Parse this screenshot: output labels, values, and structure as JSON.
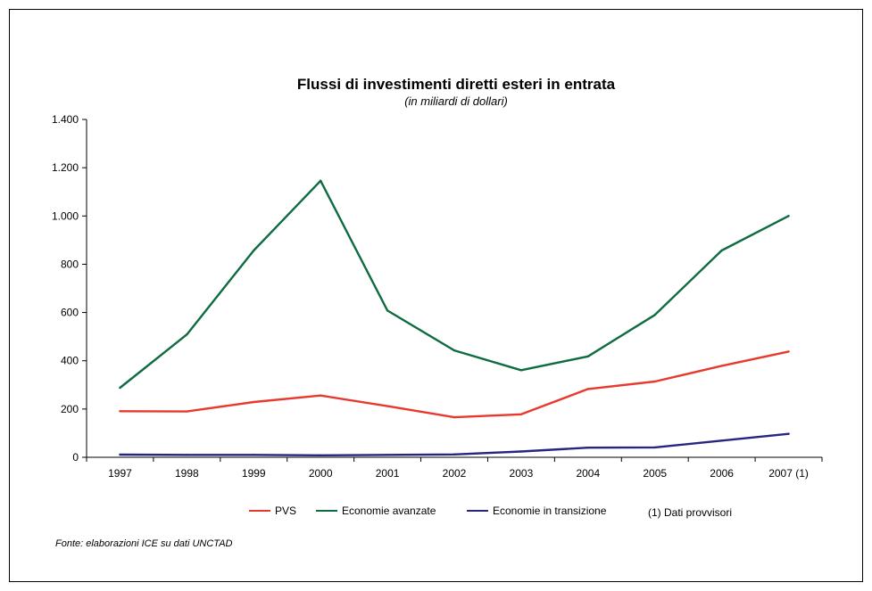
{
  "chart_data": {
    "type": "line",
    "title": "Flussi di investimenti diretti esteri in entrata",
    "subtitle": "(in miliardi di dollari)",
    "categories": [
      "1997",
      "1998",
      "1999",
      "2000",
      "2001",
      "2002",
      "2003",
      "2004",
      "2005",
      "2006",
      "2007 (1)"
    ],
    "ylim": [
      0,
      1400
    ],
    "yticks": [
      0,
      200,
      400,
      600,
      800,
      1000,
      1200,
      1400
    ],
    "ytick_labels": [
      "0",
      "200",
      "400",
      "600",
      "800",
      "1.000",
      "1.200",
      "1.400"
    ],
    "grid": false,
    "legend_position": "bottom",
    "series": [
      {
        "name": "PVS",
        "color": "#e8392f",
        "values": [
          191,
          190,
          229,
          256,
          212,
          166,
          178,
          283,
          314,
          379,
          438
        ]
      },
      {
        "name": "Economie avanzate",
        "color": "#0f6b40",
        "values": [
          288,
          509,
          857,
          1146,
          608,
          443,
          361,
          418,
          590,
          857,
          1000
        ]
      },
      {
        "name": "Economie in transizione",
        "color": "#262680",
        "values": [
          11,
          10,
          10,
          8,
          10,
          12,
          24,
          40,
          41,
          69,
          97
        ]
      }
    ],
    "note": "(1) Dati provvisori",
    "source": "Fonte: elaborazioni ICE su dati UNCTAD"
  }
}
